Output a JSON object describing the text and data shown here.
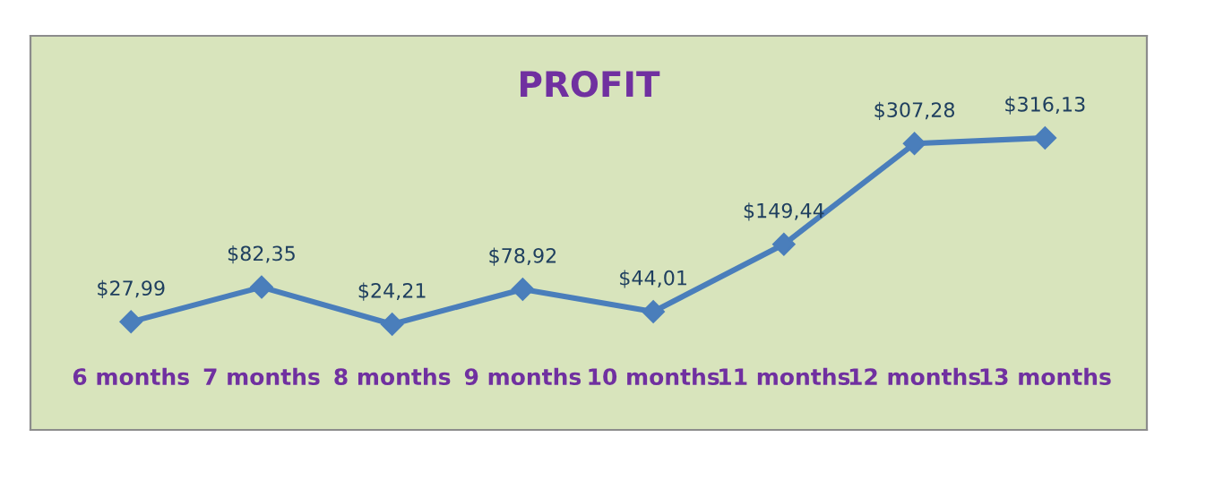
{
  "chart_data": {
    "type": "line",
    "title": "PROFIT",
    "categories": [
      "6 months",
      "7 months",
      "8 months",
      "9 months",
      "10 months",
      "11 months",
      "12 months",
      "13 months"
    ],
    "series": [
      {
        "color": "#4a7ebb",
        "values": [
          27.99,
          82.35,
          24.21,
          78.92,
          44.01,
          149.44,
          307.28,
          316.13
        ],
        "value_labels": [
          "$27,99",
          "$82,35",
          "$24,21",
          "$78,92",
          "$44,01",
          "$149,44",
          "$307,28",
          "$316,13"
        ]
      }
    ],
    "marker": "diamond",
    "line_style": "solid",
    "legend": false
  }
}
